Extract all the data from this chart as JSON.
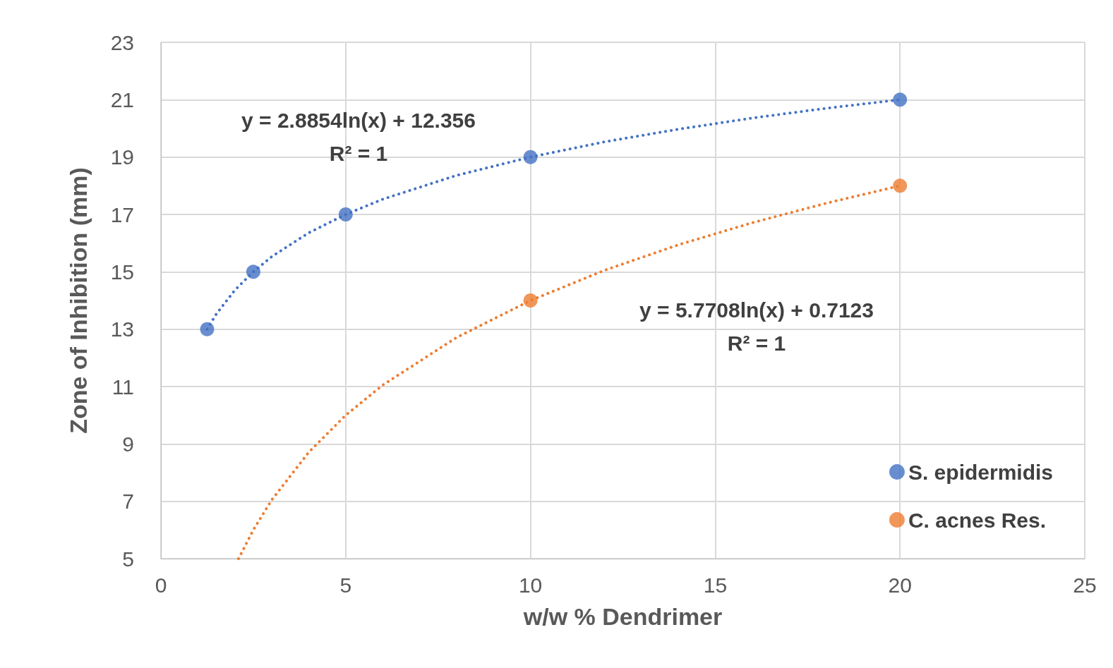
{
  "chart_data": {
    "type": "scatter",
    "xlabel": "w/w % Dendrimer",
    "ylabel": "Zone of Inhibition (mm)",
    "xlim": [
      0,
      25
    ],
    "xticks": [
      0,
      5,
      10,
      15,
      20,
      25
    ],
    "ylim": [
      5,
      23
    ],
    "yticks": [
      5,
      7,
      9,
      11,
      13,
      15,
      17,
      19,
      21,
      23
    ],
    "grid": true,
    "legend": "bottom right",
    "marker": "circle",
    "series": [
      {
        "name": "S. epidermidis",
        "color": "#4472c4",
        "x": [
          1.25,
          2.5,
          5,
          10,
          20
        ],
        "values": [
          13,
          15,
          17,
          19,
          21
        ]
      },
      {
        "name": "C. acnes Res.",
        "color": "#ed7d31",
        "x": [
          10,
          20
        ],
        "values": [
          14,
          18
        ]
      },
      {
        "type": "line",
        "color": "#4472c4",
        "line_style": "dotted",
        "marker": "none",
        "x": [
          1.25,
          1.5,
          2,
          2.5,
          3,
          4,
          5,
          6,
          8,
          10,
          12,
          14,
          16,
          18,
          20
        ],
        "values": [
          13.0,
          13.53,
          14.36,
          15.0,
          15.53,
          16.36,
          17.0,
          17.53,
          18.36,
          19.0,
          19.53,
          19.97,
          20.36,
          20.7,
          21.0
        ]
      },
      {
        "type": "line",
        "color": "#ed7d31",
        "line_style": "dotted",
        "marker": "none",
        "x": [
          2.1,
          2.5,
          3,
          4,
          5,
          6,
          8,
          10,
          12,
          14,
          16,
          18,
          20
        ],
        "values": [
          5.0,
          6.0,
          7.05,
          8.71,
          10.0,
          11.05,
          12.71,
          14.0,
          15.05,
          15.94,
          16.71,
          17.39,
          18.0
        ]
      }
    ],
    "annotations": [
      "y = 2.8854ln(x) + 12.356",
      "R² = 1",
      "y = 5.7708ln(x) + 0.7123",
      "R² = 1"
    ]
  }
}
